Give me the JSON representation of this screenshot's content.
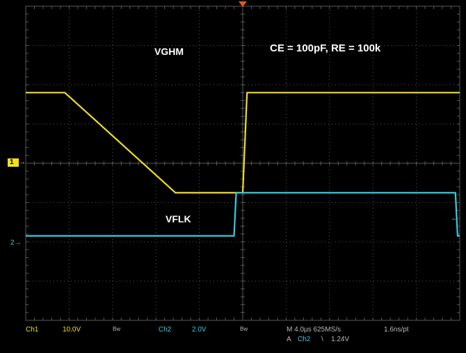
{
  "annotations": {
    "vghm": "VGHM",
    "vflk": "VFLK",
    "params": "CE = 100pF, RE = 100k"
  },
  "markers": {
    "ch1": "1",
    "ch2": "2"
  },
  "status_bar": {
    "ch1_name": "Ch1",
    "ch1_scale": "10.0V",
    "ch1_bw": "Bw",
    "ch2_name": "Ch2",
    "ch2_scale": "2.0V",
    "ch2_bw": "Bw",
    "timebase": "M 4.0µs 625MS/s",
    "sample_interval": "1.6ns/pt",
    "trigger_prefix": "A",
    "trigger_source": "Ch2",
    "trigger_slope": "\\",
    "trigger_level": "1.24V"
  },
  "colors": {
    "background": "#000000",
    "grid": "#5a5a5a",
    "ch1": "#f0e020",
    "ch2": "#2fd0e0",
    "text": "#ffffff",
    "trigger_marker": "#e05a20"
  },
  "chart_data": {
    "type": "line",
    "x_unit": "div",
    "xlim": [
      0,
      10
    ],
    "y_unit": "div",
    "ylim": [
      -4,
      4
    ],
    "grid": true,
    "divisions": {
      "x": 10,
      "y": 8
    },
    "series": [
      {
        "name": "VGHM",
        "x": [
          0,
          0.9,
          3.45,
          5.0,
          5.1,
          10.0
        ],
        "y": [
          1.8,
          1.8,
          -0.75,
          -0.75,
          1.8,
          1.8
        ],
        "repeat_period": 5.0
      },
      {
        "name": "VFLK",
        "x": [
          0,
          4.8,
          4.85,
          9.9,
          9.95,
          10.0
        ],
        "y": [
          -1.85,
          -1.85,
          -0.75,
          -0.75,
          -1.85,
          -1.85
        ],
        "repeat_period": 5.0
      }
    ]
  }
}
